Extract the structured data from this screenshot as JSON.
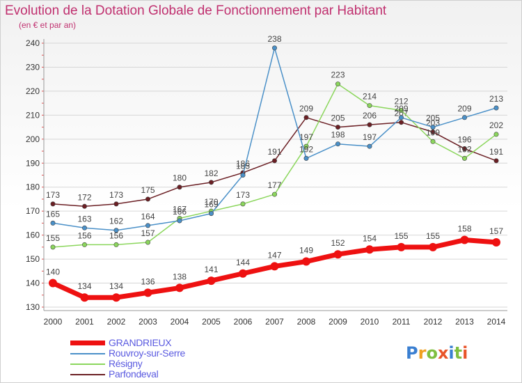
{
  "title": "Evolution de la Dotation Globale de Fonctionnement par Habitant",
  "subtitle": "(en € et par an)",
  "logo": [
    "P",
    "r",
    "o",
    "x",
    "i",
    "t",
    "i"
  ],
  "logo_colors": [
    "#3a7fd1",
    "#f0a020",
    "#7fbf3f",
    "#e8542a",
    "#3a7fd1",
    "#7fbf3f",
    "#e8542a"
  ],
  "chart_data": {
    "type": "line",
    "title": "Evolution de la Dotation Globale de Fonctionnement par Habitant",
    "subtitle": "(en € et par an)",
    "x": [
      "2000",
      "2001",
      "2002",
      "2003",
      "2004",
      "2005",
      "2006",
      "2007",
      "2008",
      "2009",
      "2010",
      "2011",
      "2012",
      "2013",
      "2014"
    ],
    "yticks": [
      130,
      140,
      150,
      160,
      170,
      180,
      190,
      200,
      210,
      220,
      230,
      240
    ],
    "ylim": [
      130,
      240
    ],
    "xlabel": "",
    "ylabel": "",
    "grid": true,
    "series": [
      {
        "name": "Parfondeval",
        "color": "#6b1f24",
        "values": [
          173,
          172,
          173,
          175,
          180,
          182,
          186,
          191,
          209,
          205,
          206,
          207,
          203,
          196,
          191
        ]
      },
      {
        "name": "Résigny",
        "color": "#8bd65c",
        "values": [
          155,
          156,
          156,
          157,
          167,
          170,
          173,
          177,
          197,
          223,
          214,
          212,
          199,
          192,
          202
        ]
      },
      {
        "name": "Rouvroy-sur-Serre",
        "color": "#4a90c8",
        "values": [
          165,
          163,
          162,
          164,
          166,
          169,
          185,
          238,
          192,
          198,
          197,
          209,
          205,
          209,
          213
        ]
      },
      {
        "name": "GRANDRIEUX",
        "color": "#ee1111",
        "values": [
          140,
          134,
          134,
          136,
          138,
          141,
          144,
          147,
          149,
          152,
          154,
          155,
          155,
          158,
          157
        ]
      }
    ],
    "legend": [
      "GRANDRIEUX",
      "Rouvroy-sur-Serre",
      "Résigny",
      "Parfondeval"
    ]
  }
}
